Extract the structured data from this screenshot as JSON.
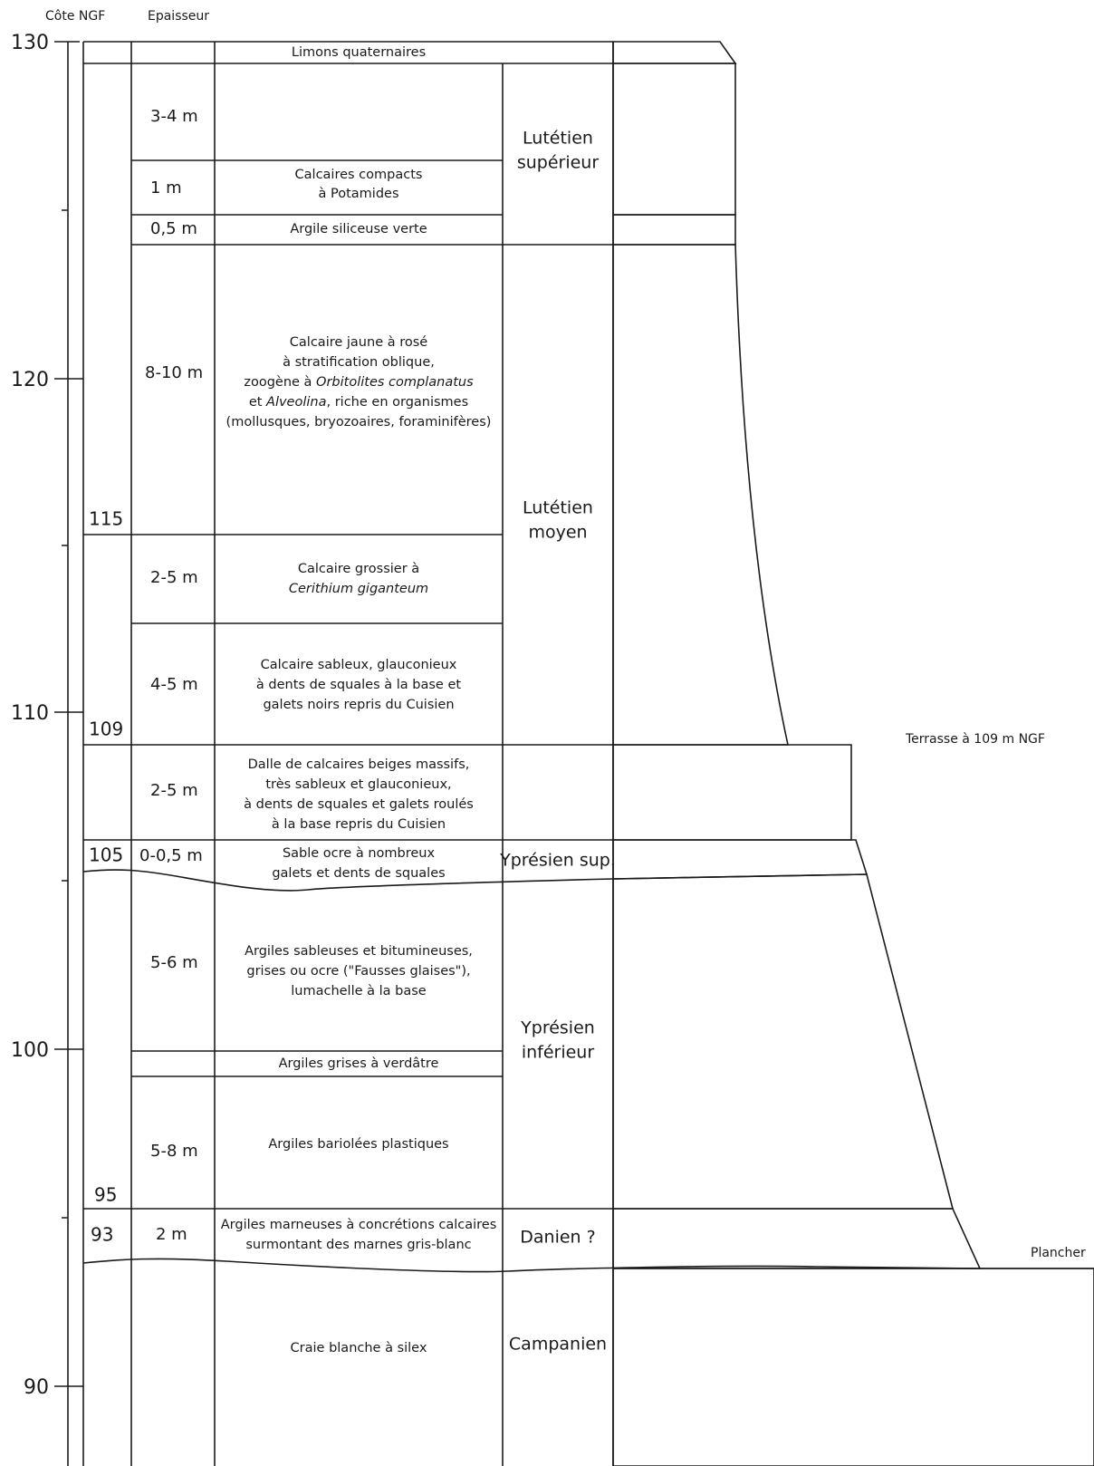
{
  "header": {
    "elevation": "Côte NGF",
    "thickness": "Epaisseur"
  },
  "elevation_ticks": [
    "130",
    "120",
    "110",
    "100",
    "90"
  ],
  "levels": [
    "115",
    "109",
    "105",
    "95",
    "93"
  ],
  "layers": [
    {
      "description": [
        [
          "Limons quaternaires"
        ]
      ]
    },
    {
      "thickness": "3-4 m"
    },
    {
      "thickness": "1 m",
      "description": [
        [
          "Calcaires compacts"
        ],
        [
          "à Potamides"
        ]
      ]
    },
    {
      "thickness": "0,5 m",
      "description": [
        [
          "Argile siliceuse verte"
        ]
      ]
    },
    {
      "thickness": "8-10 m",
      "description": [
        [
          "Calcaire jaune à rosé"
        ],
        [
          "à stratification oblique,"
        ],
        [
          "zoogène à",
          "Orbitolites complanatus"
        ],
        [
          "et",
          "Alveolina",
          ", riche en organismes"
        ],
        [
          "(mollusques, bryozoaires, foraminifères)"
        ]
      ]
    },
    {
      "thickness": "2-5 m",
      "description": [
        [
          "Calcaire grossier à"
        ],
        [
          "Cerithium giganteum"
        ]
      ]
    },
    {
      "thickness": "4-5 m",
      "description": [
        [
          "Calcaire sableux, glauconieux"
        ],
        [
          "à dents de squales à la base et"
        ],
        [
          "galets noirs repris du Cuisien"
        ]
      ]
    },
    {
      "thickness": "2-5 m",
      "description": [
        [
          "Dalle de calcaires beiges massifs,"
        ],
        [
          "très sableux et glauconieux,"
        ],
        [
          "à dents de squales et galets roulés"
        ],
        [
          "à la base repris du Cuisien"
        ]
      ]
    },
    {
      "thickness": "0-0,5 m",
      "description": [
        [
          "Sable ocre à nombreux"
        ],
        [
          "galets et dents de squales"
        ]
      ]
    },
    {
      "thickness": "5-6 m",
      "description": [
        [
          "Argiles sableuses et bitumineuses,"
        ],
        [
          "grises ou ocre (\"Fausses glaises\"),"
        ],
        [
          "lumachelle à la base"
        ]
      ]
    },
    {
      "description": [
        [
          "Argiles grises à verdâtre"
        ]
      ]
    },
    {
      "thickness": "5-8 m",
      "description": [
        [
          "Argiles bariolées plastiques"
        ]
      ]
    },
    {
      "thickness": "2 m",
      "description": [
        [
          "Argiles marneuses à concrétions calcaires"
        ],
        [
          "surmontant des marnes gris-blanc"
        ]
      ]
    },
    {
      "description": [
        [
          "Craie blanche à silex"
        ]
      ]
    }
  ],
  "stages": [
    [
      "Lutétien",
      "supérieur"
    ],
    [
      "Lutétien",
      "moyen"
    ],
    [
      "Yprésien sup."
    ],
    [
      "Yprésien",
      "inférieur"
    ],
    [
      "Danien ?"
    ],
    [
      "Campanien"
    ]
  ],
  "annotations": {
    "terrace": "Terrasse  à 109 m NGF",
    "floor": "Plancher"
  }
}
